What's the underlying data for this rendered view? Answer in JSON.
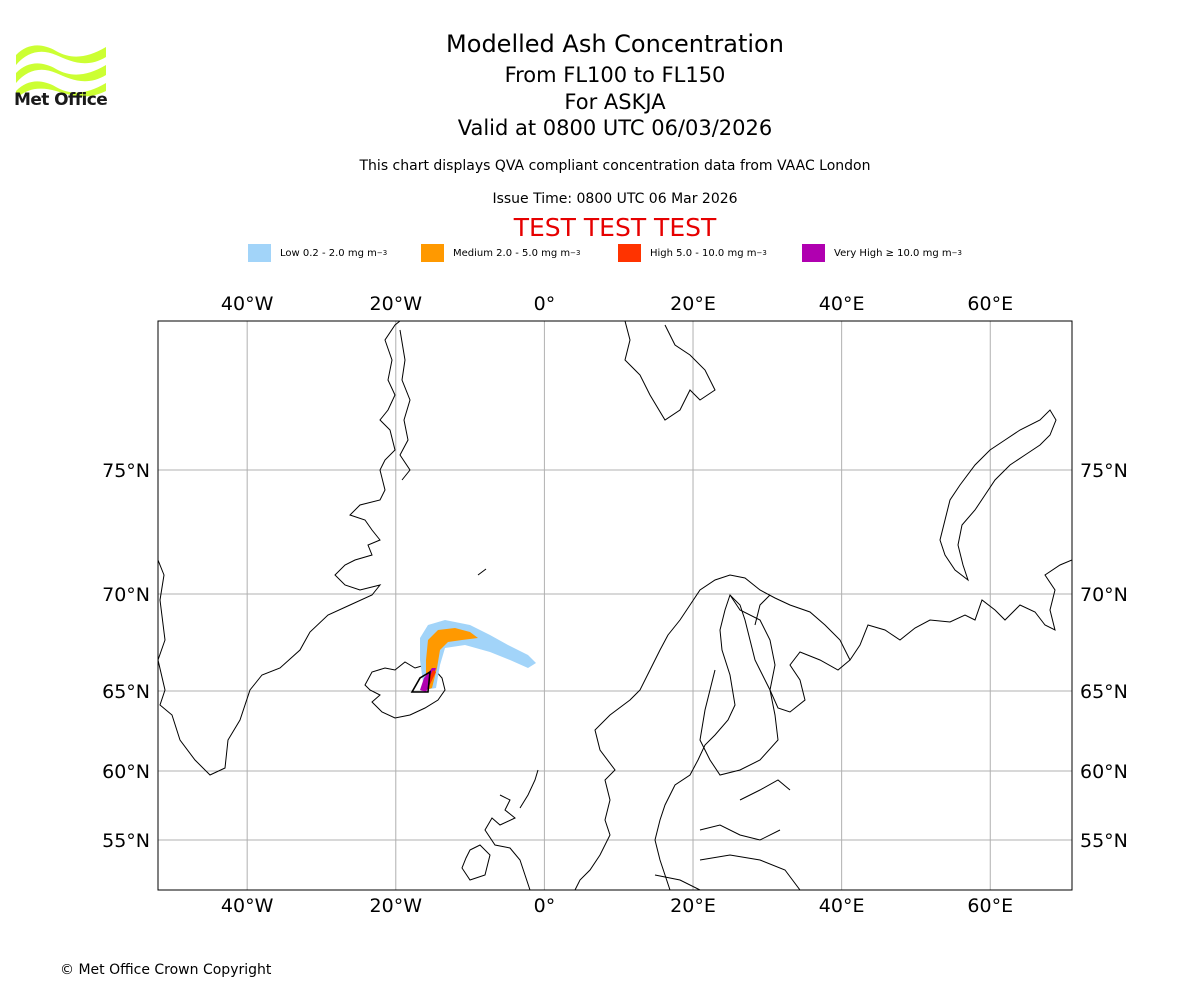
{
  "logo": {
    "text": "Met Office",
    "color": "#ccff33"
  },
  "title": {
    "main": "Modelled Ash Concentration",
    "levels": "From FL100 to FL150",
    "volcano": "For ASKJA",
    "valid": "Valid at 0800 UTC 06/03/2026"
  },
  "subtitle": {
    "compliance": "This chart displays QVA compliant concentration data from VAAC London",
    "issue": "Issue Time: 0800 UTC 06 Mar 2026",
    "test_banner": "TEST TEST TEST"
  },
  "legend": [
    {
      "label": "Low 0.2 - 2.0 mg m",
      "color": "#a2d4f9"
    },
    {
      "label": "Medium 2.0 - 5.0 mg m",
      "color": "#ff9900"
    },
    {
      "label": "High 5.0 - 10.0 mg m",
      "color": "#ff3300"
    },
    {
      "label": "Very High ≥ 10.0 mg m",
      "color": "#b000b0"
    }
  ],
  "legend_unit_exponent": "−3",
  "map": {
    "lon_ticks": [
      "40°W",
      "20°W",
      "0°",
      "20°E",
      "40°E",
      "60°E"
    ],
    "lat_ticks": [
      "75°N",
      "70°N",
      "65°N",
      "60°N",
      "55°N"
    ],
    "lon_values": [
      -40,
      -20,
      0,
      20,
      40,
      60
    ],
    "lat_values": [
      75,
      70,
      65,
      60,
      55
    ],
    "extent": {
      "lon_min": -52,
      "lon_max": 71,
      "lat_min": 52.5,
      "lat_max": 80
    },
    "colors": {
      "grid": "#b0b0b0",
      "coast": "#000000",
      "frame": "#000000"
    }
  },
  "footer": {
    "copyright": "© Met Office Crown Copyright"
  }
}
